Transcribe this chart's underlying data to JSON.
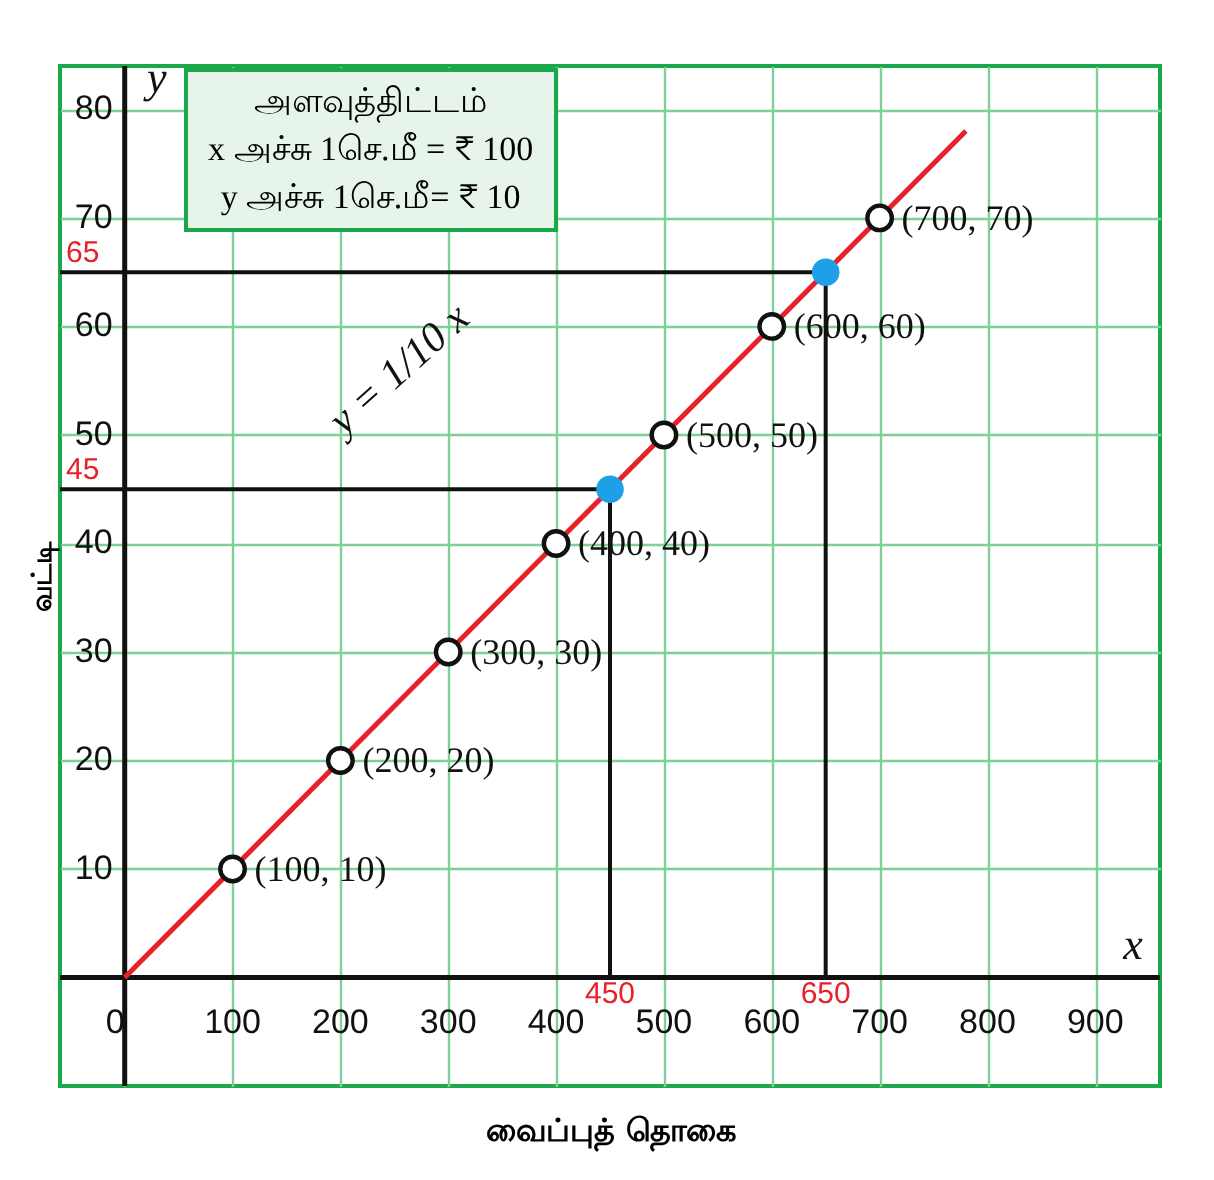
{
  "chart_data": {
    "type": "line",
    "xlabel": "வைப்புத் தொகை",
    "ylabel": "வட்டி",
    "xlim": [
      -60,
      960
    ],
    "ylim": [
      -10,
      84
    ],
    "xticks": [
      {
        "value": 0,
        "label": "0"
      },
      100,
      200,
      300,
      400,
      500,
      600,
      700,
      800,
      900
    ],
    "yticks": [
      10,
      20,
      30,
      40,
      50,
      60,
      70,
      80
    ],
    "grid": true,
    "series": [
      {
        "color": "#e8202a",
        "x": [
          0,
          780
        ],
        "values": [
          0,
          78
        ],
        "marker": "none"
      },
      {
        "type": "scatter",
        "color": "#111111",
        "marker": "circle",
        "x": [
          100,
          200,
          300,
          400,
          500,
          600,
          700
        ],
        "values": [
          10,
          20,
          30,
          40,
          50,
          60,
          70
        ],
        "value_labels": [
          "(100, 10)",
          "(200, 20)",
          "(300, 30)",
          "(400, 40)",
          "(500, 50)",
          "(600, 60)",
          "(700, 70)"
        ]
      },
      {
        "type": "scatter",
        "color": "#1ea0e6",
        "marker": "circle",
        "x": [
          450,
          650
        ],
        "values": [
          45,
          65
        ]
      }
    ],
    "ref_lines": [
      {
        "axis": "x",
        "value": 450,
        "label": "450",
        "color": "#111111"
      },
      {
        "axis": "x",
        "value": 650,
        "label": "650",
        "color": "#111111"
      },
      {
        "axis": "y",
        "value": 45,
        "label": "45",
        "color": "#111111"
      },
      {
        "axis": "y",
        "value": 65,
        "label": "65",
        "color": "#111111"
      }
    ],
    "annotations": [
      "அளவுத்திட்டம்",
      "x அச்சு  1செ.மீ = ₹ 100",
      "y அச்சு  1செ.மீ= ₹ 10",
      "y = 1/10 x",
      "x",
      "y"
    ]
  }
}
